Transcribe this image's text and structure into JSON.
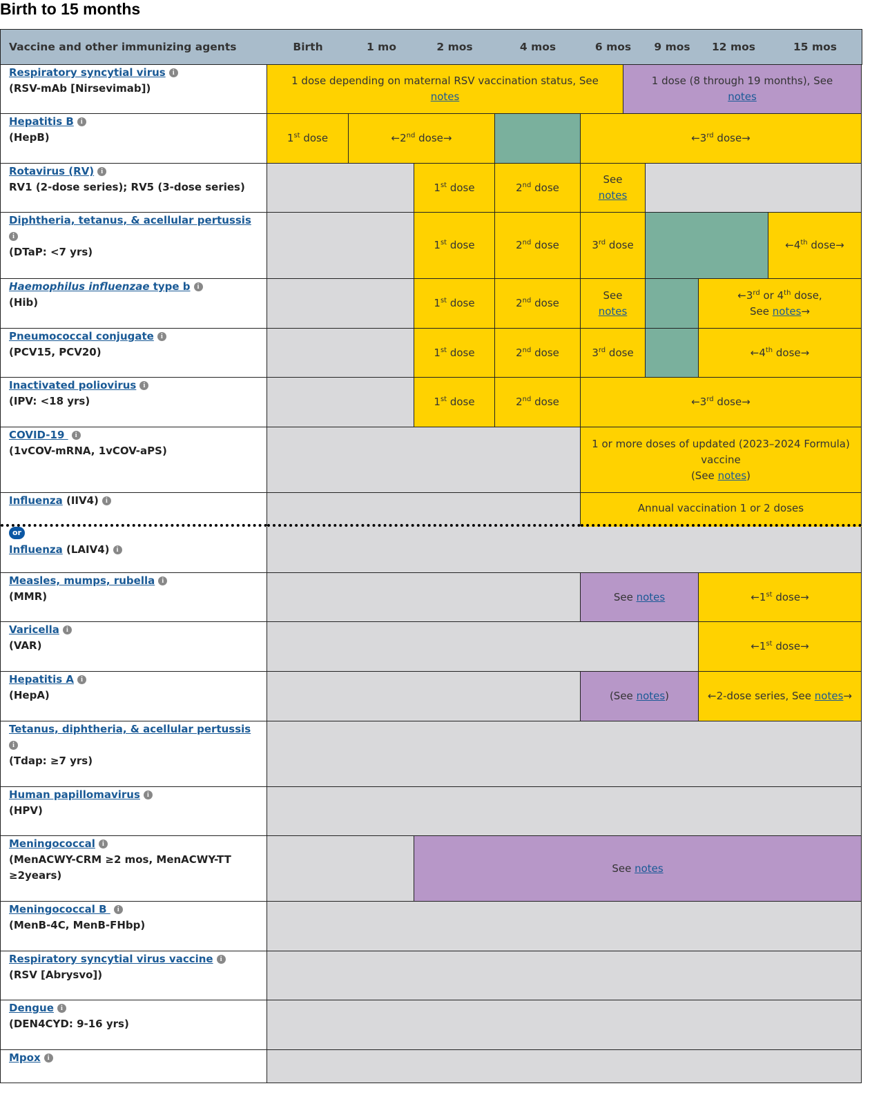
{
  "title": "Birth to 15 months",
  "colors": {
    "yellow": "#FFD200",
    "purple": "#B797C8",
    "green": "#7AB09D",
    "gray": "#D9D9DB",
    "header": "#A9BCCB",
    "link": "#1A5A96"
  },
  "header": [
    "Vaccine and other immunizing agents",
    "Birth",
    "1 mo",
    "2 mos",
    "4 mos",
    "6 mos",
    "9 mos",
    "12 mos",
    "15 mos"
  ],
  "rows": [
    {
      "id": "rsv",
      "name": [
        "Respiratory syncytial virus"
      ],
      "sub": "(RSV-mAb [Nirsevimab])",
      "cells": [
        {
          "from": "Birth",
          "to": "6 mos",
          "partial": true,
          "c": "yellow",
          "t": [
            "1 dose depending on maternal RSV vaccination status, See ",
            {
              "br": 1
            },
            {
              "link": "notes"
            }
          ]
        },
        {
          "from": "6 mos",
          "partial": true,
          "to": "15 mos",
          "c": "purple",
          "t": [
            "1 dose (8 through 19 months), See ",
            {
              "br": 1
            },
            {
              "link": "notes"
            }
          ]
        }
      ]
    },
    {
      "id": "hepb",
      "name": [
        "Hepatitis B"
      ],
      "sub": "(HepB)",
      "cells": [
        {
          "from": "Birth",
          "to": "Birth",
          "c": "yellow",
          "t": [
            "1",
            {
              "sup": "st"
            },
            " dose"
          ]
        },
        {
          "from": "1 mo",
          "to": "2 mos",
          "c": "yellow",
          "t": [
            "←2",
            {
              "sup": "nd"
            },
            " dose→"
          ]
        },
        {
          "from": "4 mos",
          "to": "4 mos",
          "c": "green",
          "t": []
        },
        {
          "from": "6 mos",
          "to": "15 mos",
          "c": "yellow",
          "t": [
            "←3",
            {
              "sup": "rd"
            },
            " dose→"
          ]
        }
      ]
    },
    {
      "id": "rv",
      "name": [
        "Rotavirus (RV)"
      ],
      "sub": "RV1 (2-dose series); RV5 (3-dose series)",
      "cells": [
        {
          "from": "Birth",
          "to": "1 mo",
          "c": "gray",
          "t": []
        },
        {
          "from": "2 mos",
          "to": "2 mos",
          "c": "yellow",
          "t": [
            "1",
            {
              "sup": "st"
            },
            " dose"
          ]
        },
        {
          "from": "4 mos",
          "to": "4 mos",
          "c": "yellow",
          "t": [
            "2",
            {
              "sup": "nd"
            },
            " dose"
          ]
        },
        {
          "from": "6 mos",
          "to": "6 mos",
          "c": "yellow",
          "t": [
            "See ",
            {
              "br": 1
            },
            {
              "link": "notes"
            }
          ]
        },
        {
          "from": "9 mos",
          "to": "15 mos",
          "c": "gray",
          "t": []
        }
      ]
    },
    {
      "id": "dtap",
      "name": [
        "Diphtheria, tetanus, & acellular pertussis"
      ],
      "infoBreak": true,
      "sub": "(DTaP: <7 yrs)",
      "cells": [
        {
          "from": "Birth",
          "to": "1 mo",
          "c": "gray",
          "t": []
        },
        {
          "from": "2 mos",
          "to": "2 mos",
          "c": "yellow",
          "t": [
            "1",
            {
              "sup": "st"
            },
            " dose"
          ]
        },
        {
          "from": "4 mos",
          "to": "4 mos",
          "c": "yellow",
          "t": [
            "2",
            {
              "sup": "nd"
            },
            " dose"
          ]
        },
        {
          "from": "6 mos",
          "to": "6 mos",
          "c": "yellow",
          "t": [
            "3",
            {
              "sup": "rd"
            },
            " dose"
          ]
        },
        {
          "from": "9 mos",
          "to": "12 mos",
          "c": "green",
          "t": []
        },
        {
          "from": "15 mos",
          "to": "15 mos",
          "c": "yellow",
          "t": [
            "←4",
            {
              "sup": "th"
            },
            " dose→"
          ]
        }
      ]
    },
    {
      "id": "hib",
      "name": [
        {
          "i": "Haemophilus influenzae"
        },
        " type b"
      ],
      "sub": "(Hib)",
      "cells": [
        {
          "from": "Birth",
          "to": "1 mo",
          "c": "gray",
          "t": []
        },
        {
          "from": "2 mos",
          "to": "2 mos",
          "c": "yellow",
          "t": [
            "1",
            {
              "sup": "st"
            },
            " dose"
          ]
        },
        {
          "from": "4 mos",
          "to": "4 mos",
          "c": "yellow",
          "t": [
            "2",
            {
              "sup": "nd"
            },
            " dose"
          ]
        },
        {
          "from": "6 mos",
          "to": "6 mos",
          "c": "yellow",
          "t": [
            "See ",
            {
              "br": 1
            },
            {
              "link": "notes"
            }
          ]
        },
        {
          "from": "9 mos",
          "to": "9 mos",
          "c": "green",
          "t": []
        },
        {
          "from": "12 mos",
          "to": "15 mos",
          "c": "yellow",
          "t": [
            "←3",
            {
              "sup": "rd"
            },
            " or 4",
            {
              "sup": "th"
            },
            " dose,",
            {
              "br": 1
            },
            "See ",
            {
              "link": "notes"
            },
            "→"
          ]
        }
      ]
    },
    {
      "id": "pcv",
      "name": [
        "Pneumococcal conjugate"
      ],
      "sub": "(PCV15, PCV20)",
      "cells": [
        {
          "from": "Birth",
          "to": "1 mo",
          "c": "gray",
          "t": []
        },
        {
          "from": "2 mos",
          "to": "2 mos",
          "c": "yellow",
          "t": [
            "1",
            {
              "sup": "st"
            },
            " dose"
          ]
        },
        {
          "from": "4 mos",
          "to": "4 mos",
          "c": "yellow",
          "t": [
            "2",
            {
              "sup": "nd"
            },
            " dose"
          ]
        },
        {
          "from": "6 mos",
          "to": "6 mos",
          "c": "yellow",
          "t": [
            "3",
            {
              "sup": "rd"
            },
            " dose"
          ]
        },
        {
          "from": "9 mos",
          "to": "9 mos",
          "c": "green",
          "t": []
        },
        {
          "from": "12 mos",
          "to": "15 mos",
          "c": "yellow",
          "t": [
            "←4",
            {
              "sup": "th"
            },
            " dose→"
          ]
        }
      ]
    },
    {
      "id": "ipv",
      "name": [
        "Inactivated poliovirus"
      ],
      "sub": "(IPV: <18 yrs)",
      "cells": [
        {
          "from": "Birth",
          "to": "1 mo",
          "c": "gray",
          "t": []
        },
        {
          "from": "2 mos",
          "to": "2 mos",
          "c": "yellow",
          "t": [
            "1",
            {
              "sup": "st"
            },
            " dose"
          ]
        },
        {
          "from": "4 mos",
          "to": "4 mos",
          "c": "yellow",
          "t": [
            "2",
            {
              "sup": "nd"
            },
            " dose"
          ]
        },
        {
          "from": "6 mos",
          "to": "15 mos",
          "c": "yellow",
          "t": [
            "←3",
            {
              "sup": "rd"
            },
            " dose→"
          ]
        }
      ]
    },
    {
      "id": "covid",
      "name": [
        "COVID-19 "
      ],
      "sub": "(1vCOV-mRNA, 1vCOV-aPS)",
      "cells": [
        {
          "from": "Birth",
          "to": "4 mos",
          "c": "gray",
          "t": []
        },
        {
          "from": "6 mos",
          "to": "15 mos",
          "c": "yellow",
          "t": [
            "1 or more doses of updated (2023–2024 Formula) vaccine",
            {
              "br": 1
            },
            "(See ",
            {
              "link": "notes"
            },
            ")"
          ]
        }
      ]
    },
    {
      "id": "iiv4",
      "name": [
        "Influenza"
      ],
      "suffix": " (IIV4)",
      "sub": "",
      "dotted": true,
      "cells": [
        {
          "from": "Birth",
          "to": "4 mos",
          "c": "gray",
          "t": []
        },
        {
          "from": "6 mos",
          "to": "15 mos",
          "c": "yellow",
          "t": [
            "Annual vaccination 1 or 2 doses"
          ]
        }
      ]
    },
    {
      "id": "laiv4",
      "or": "or",
      "name": [
        "Influenza"
      ],
      "suffix": " (LAIV4)",
      "sub": "",
      "cells": [
        {
          "from": "Birth",
          "to": "15 mos",
          "c": "gray",
          "t": []
        }
      ]
    },
    {
      "id": "mmr",
      "name": [
        "Measles, mumps, rubella"
      ],
      "sub": "(MMR)",
      "cells": [
        {
          "from": "Birth",
          "to": "4 mos",
          "c": "gray",
          "t": []
        },
        {
          "from": "6 mos",
          "to": "9 mos",
          "c": "purple",
          "t": [
            "See ",
            {
              "link": "notes"
            }
          ]
        },
        {
          "from": "12 mos",
          "to": "15 mos",
          "c": "yellow",
          "t": [
            "←1",
            {
              "sup": "st"
            },
            " dose→"
          ]
        }
      ]
    },
    {
      "id": "var",
      "name": [
        "Varicella"
      ],
      "sub": "(VAR)",
      "cells": [
        {
          "from": "Birth",
          "to": "9 mos",
          "c": "gray",
          "t": []
        },
        {
          "from": "12 mos",
          "to": "15 mos",
          "c": "yellow",
          "t": [
            "←1",
            {
              "sup": "st"
            },
            " dose→"
          ]
        }
      ]
    },
    {
      "id": "hepa",
      "name": [
        "Hepatitis A"
      ],
      "sub": "(HepA)",
      "cells": [
        {
          "from": "Birth",
          "to": "4 mos",
          "c": "gray",
          "t": []
        },
        {
          "from": "6 mos",
          "to": "9 mos",
          "c": "purple",
          "t": [
            "(See ",
            {
              "link": "notes"
            },
            ")"
          ]
        },
        {
          "from": "12 mos",
          "to": "15 mos",
          "c": "yellow",
          "t": [
            "←2-dose series, See ",
            {
              "link": "notes"
            },
            "→"
          ]
        }
      ]
    },
    {
      "id": "tdap",
      "name": [
        "Tetanus, diphtheria, & acellular pertussis"
      ],
      "infoBreak": true,
      "sub": "(Tdap: ≥7 yrs)",
      "cells": [
        {
          "from": "Birth",
          "to": "15 mos",
          "c": "gray",
          "t": []
        }
      ]
    },
    {
      "id": "hpv",
      "name": [
        "Human papillomavirus"
      ],
      "sub": "(HPV)",
      "cells": [
        {
          "from": "Birth",
          "to": "15 mos",
          "c": "gray",
          "t": []
        }
      ]
    },
    {
      "id": "men",
      "name": [
        "Meningococcal"
      ],
      "sub": "(MenACWY-CRM ≥2 mos, MenACWY-TT ≥2years)",
      "cells": [
        {
          "from": "Birth",
          "to": "1 mo",
          "c": "gray",
          "t": []
        },
        {
          "from": "2 mos",
          "to": "15 mos",
          "c": "purple",
          "t": [
            "See ",
            {
              "link": "notes"
            }
          ]
        }
      ]
    },
    {
      "id": "menb",
      "name": [
        "Meningococcal B "
      ],
      "sub": "(MenB-4C, MenB-FHbp)",
      "cells": [
        {
          "from": "Birth",
          "to": "15 mos",
          "c": "gray",
          "t": []
        }
      ]
    },
    {
      "id": "rsvvac",
      "name": [
        "Respiratory syncytial virus vaccine"
      ],
      "sub": "(RSV [Abrysvo])",
      "cells": [
        {
          "from": "Birth",
          "to": "15 mos",
          "c": "gray",
          "t": []
        }
      ]
    },
    {
      "id": "dengue",
      "name": [
        "Dengue"
      ],
      "sub": "(DEN4CYD: 9-16 yrs)",
      "cells": [
        {
          "from": "Birth",
          "to": "15 mos",
          "c": "gray",
          "t": []
        }
      ]
    },
    {
      "id": "mpox",
      "name": [
        "Mpox"
      ],
      "sub": "",
      "cells": [
        {
          "from": "Birth",
          "to": "15 mos",
          "c": "gray",
          "t": []
        }
      ]
    }
  ]
}
